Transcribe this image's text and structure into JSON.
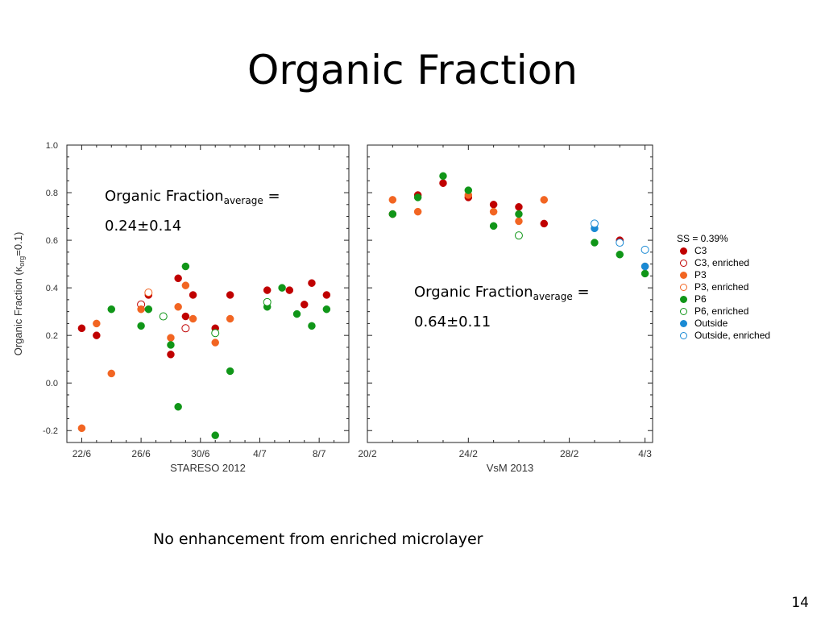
{
  "slide": {
    "title": "Organic Fraction",
    "footnote": "No enhancement from enriched microlayer",
    "page_number": "14"
  },
  "annotations": [
    {
      "line1_main": "Organic Fraction",
      "line1_sub": "average",
      "line1_tail": " =",
      "line2": "0.24±0.14"
    },
    {
      "line1_main": "Organic Fraction",
      "line1_sub": "average",
      "line1_tail": " =",
      "line2": "0.64±0.11"
    }
  ],
  "legend": {
    "title": "SS = 0.39%",
    "items": [
      {
        "label": "C3",
        "color": "#c00000",
        "filled": true
      },
      {
        "label": "C3, enriched",
        "color": "#c00000",
        "filled": false
      },
      {
        "label": "P3",
        "color": "#f26522",
        "filled": true
      },
      {
        "label": "P3, enriched",
        "color": "#f26522",
        "filled": false
      },
      {
        "label": "P6",
        "color": "#109618",
        "filled": true
      },
      {
        "label": "P6, enriched",
        "color": "#109618",
        "filled": false
      },
      {
        "label": "Outside",
        "color": "#1a8ad4",
        "filled": true
      },
      {
        "label": "Outside, enriched",
        "color": "#1a8ad4",
        "filled": false
      }
    ]
  },
  "chart_data": {
    "type": "scatter",
    "ylabel": "Organic Fraction (κ",
    "ylabel_sub": "org",
    "ylabel_tail": "=0.1)",
    "ylim": [
      -0.25,
      1.0
    ],
    "yticks": [
      "1.0",
      "0.8",
      "0.6",
      "0.4",
      "0.2",
      "0.0",
      "-0.2"
    ],
    "ytick_values": [
      1.0,
      0.8,
      0.6,
      0.4,
      0.2,
      0.0,
      -0.2
    ],
    "panels": [
      {
        "xlabel": "STARESO 2012",
        "xlim": [
          0,
          19
        ],
        "xticks": [
          {
            "label": "22/6",
            "x": 1
          },
          {
            "label": "26/6",
            "x": 5
          },
          {
            "label": "30/6",
            "x": 9
          },
          {
            "label": "4/7",
            "x": 13
          },
          {
            "label": "8/7",
            "x": 17
          }
        ],
        "series": [
          {
            "name": "C3",
            "points": [
              [
                1,
                0.23
              ],
              [
                2,
                0.2
              ],
              [
                5.5,
                0.37
              ],
              [
                7,
                0.12
              ],
              [
                7.5,
                0.44
              ],
              [
                8,
                0.28
              ],
              [
                8.5,
                0.37
              ],
              [
                10,
                0.23
              ],
              [
                11,
                0.37
              ],
              [
                13.5,
                0.39
              ],
              [
                15,
                0.39
              ],
              [
                16,
                0.33
              ],
              [
                16.5,
                0.42
              ],
              [
                17.5,
                0.37
              ]
            ]
          },
          {
            "name": "C3, enriched",
            "points": [
              [
                5,
                0.33
              ],
              [
                8,
                0.23
              ]
            ]
          },
          {
            "name": "P3",
            "points": [
              [
                1,
                -0.19
              ],
              [
                2,
                0.25
              ],
              [
                3,
                0.04
              ],
              [
                5,
                0.31
              ],
              [
                7,
                0.19
              ],
              [
                7.5,
                0.32
              ],
              [
                8,
                0.41
              ],
              [
                8.5,
                0.27
              ],
              [
                10,
                0.17
              ],
              [
                11,
                0.27
              ]
            ]
          },
          {
            "name": "P3, enriched",
            "points": [
              [
                5.5,
                0.38
              ]
            ]
          },
          {
            "name": "P6",
            "points": [
              [
                3,
                0.31
              ],
              [
                5,
                0.24
              ],
              [
                5.5,
                0.31
              ],
              [
                7,
                0.16
              ],
              [
                7.5,
                -0.1
              ],
              [
                8,
                0.49
              ],
              [
                10,
                -0.22
              ],
              [
                11,
                0.05
              ],
              [
                13.5,
                0.32
              ],
              [
                14.5,
                0.4
              ],
              [
                15.5,
                0.29
              ],
              [
                16.5,
                0.24
              ],
              [
                17.5,
                0.31
              ]
            ]
          },
          {
            "name": "P6, enriched",
            "points": [
              [
                6.5,
                0.28
              ],
              [
                10,
                0.21
              ],
              [
                13.5,
                0.34
              ]
            ]
          }
        ]
      },
      {
        "xlabel": "VsM 2013",
        "xlim": [
          20,
          31.3
        ],
        "xticks": [
          {
            "label": "20/2",
            "x": 20
          },
          {
            "label": "24/2",
            "x": 24
          },
          {
            "label": "28/2",
            "x": 28
          },
          {
            "label": "4/3",
            "x": 31
          }
        ],
        "series": [
          {
            "name": "C3",
            "points": [
              [
                21,
                0.71
              ],
              [
                22,
                0.79
              ],
              [
                23,
                0.84
              ],
              [
                24,
                0.78
              ],
              [
                25,
                0.75
              ],
              [
                26,
                0.74
              ],
              [
                27,
                0.67
              ],
              [
                30,
                0.6
              ]
            ]
          },
          {
            "name": "P3",
            "points": [
              [
                21,
                0.77
              ],
              [
                22,
                0.72
              ],
              [
                24,
                0.79
              ],
              [
                25,
                0.72
              ],
              [
                26,
                0.68
              ],
              [
                27,
                0.77
              ],
              [
                31,
                0.49
              ]
            ]
          },
          {
            "name": "P6",
            "points": [
              [
                21,
                0.71
              ],
              [
                22,
                0.78
              ],
              [
                23,
                0.87
              ],
              [
                24,
                0.81
              ],
              [
                25,
                0.66
              ],
              [
                26,
                0.71
              ],
              [
                29,
                0.59
              ],
              [
                30,
                0.54
              ],
              [
                31,
                0.46
              ]
            ]
          },
          {
            "name": "P6, enriched",
            "points": [
              [
                26,
                0.62
              ]
            ]
          },
          {
            "name": "Outside",
            "points": [
              [
                29,
                0.65
              ],
              [
                31,
                0.49
              ]
            ]
          },
          {
            "name": "Outside, enriched",
            "points": [
              [
                29,
                0.67
              ],
              [
                30,
                0.59
              ],
              [
                31,
                0.56
              ]
            ]
          }
        ]
      }
    ]
  }
}
